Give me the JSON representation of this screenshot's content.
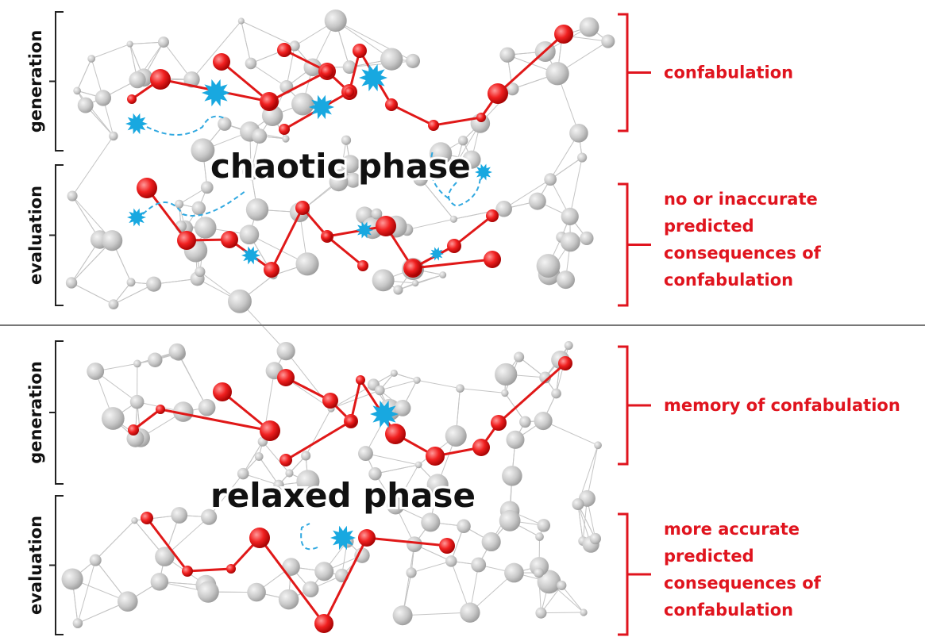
{
  "panels": [
    {
      "phase": "chaotic phase",
      "sections": [
        {
          "label": "generation",
          "annotation": [
            "confabulation"
          ]
        },
        {
          "label": "evaluation",
          "annotation": [
            "no or inaccurate",
            "predicted",
            "consequences of",
            "confabulation"
          ]
        }
      ]
    },
    {
      "phase": "relaxed phase",
      "sections": [
        {
          "label": "generation",
          "annotation": [
            "memory of confabulation"
          ]
        },
        {
          "label": "evaluation",
          "annotation": [
            "more accurate",
            "predicted",
            "consequences of",
            "confabulation"
          ]
        }
      ]
    }
  ]
}
